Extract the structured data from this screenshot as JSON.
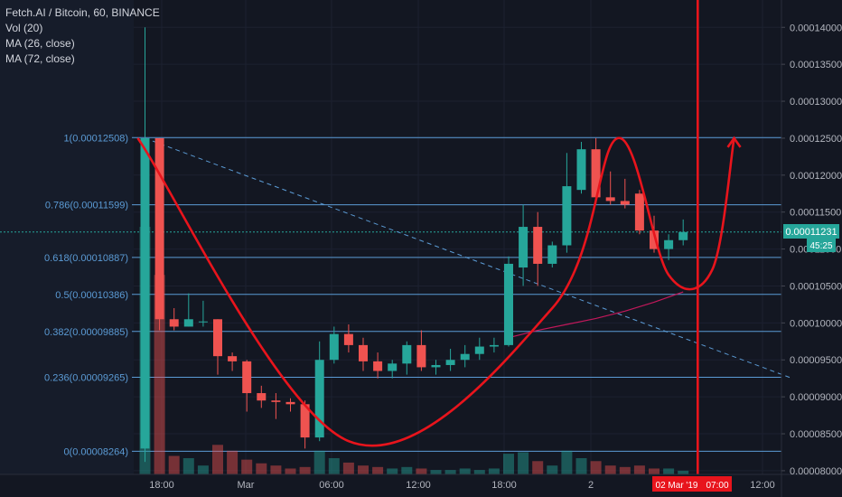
{
  "header": {
    "symbol_line": "Fetch.AI / Bitcoin, 60, BINANCE",
    "indicators": [
      "Vol (20)",
      "MA (26, close)",
      "MA (72, close)"
    ]
  },
  "price_axis": {
    "ticks": [
      "0.00014000",
      "0.00013500",
      "0.00013000",
      "0.00012500",
      "0.00012000",
      "0.00011500",
      "0.00011000",
      "0.00010500",
      "0.00010000",
      "0.00009500",
      "0.00009000",
      "0.00008500",
      "0.00008000"
    ],
    "current_price": "0.00011231",
    "countdown": "45:25"
  },
  "time_axis": {
    "labels": [
      "18:00",
      "Mar",
      "06:00",
      "12:00",
      "18:00",
      "2",
      "12:00"
    ],
    "highlight_date": "02 Mar '19",
    "highlight_time": "07:00"
  },
  "colors": {
    "background": "#131722",
    "up": "#26a69a",
    "down": "#ef5350",
    "fib": "#5b9bd5",
    "drawing": "#e8141c",
    "axis_text": "#b2b5be"
  },
  "chart_data": {
    "type": "candlestick",
    "ylim": [
      7.95e-05,
      0.0001437
    ],
    "fib_levels": [
      {
        "label": "1(0.00012508)",
        "value": 0.00012508
      },
      {
        "label": "0.786(0.00011599)",
        "value": 0.00011599
      },
      {
        "label": "0.618(0.00010887)",
        "value": 0.00010887
      },
      {
        "label": "0.5(0.00010386)",
        "value": 0.00010386
      },
      {
        "label": "0.382(0.00009885)",
        "value": 9.885e-05
      },
      {
        "label": "0.236(0.00009265)",
        "value": 9.265e-05
      },
      {
        "label": "0(0.00008264)",
        "value": 8.264e-05
      }
    ],
    "candles": [
      {
        "o": 8.3e-05,
        "h": 0.00014,
        "l": 8.12e-05,
        "c": 0.000125,
        "v": 3.35e-05
      },
      {
        "o": 0.000125,
        "h": 0.000125,
        "l": 9.9e-05,
        "c": 0.0001005,
        "v": 2.7e-05
      },
      {
        "o": 0.0001005,
        "h": 0.000102,
        "l": 9.9e-05,
        "c": 9.95e-05,
        "v": 2.5e-06
      },
      {
        "o": 9.95e-05,
        "h": 0.000104,
        "l": 9.95e-05,
        "c": 0.0001005,
        "v": 2.2e-06
      },
      {
        "o": 0.0001002,
        "h": 0.000103,
        "l": 9.95e-05,
        "c": 0.0001002,
        "v": 1.2e-06
      },
      {
        "o": 0.0001005,
        "h": 0.0001005,
        "l": 9.3e-05,
        "c": 9.55e-05,
        "v": 4e-06
      },
      {
        "o": 9.55e-05,
        "h": 9.6e-05,
        "l": 9.35e-05,
        "c": 9.48e-05,
        "v": 3.2e-06
      },
      {
        "o": 9.48e-05,
        "h": 9.5e-05,
        "l": 8.8e-05,
        "c": 9.05e-05,
        "v": 2e-06
      },
      {
        "o": 9.05e-05,
        "h": 9.15e-05,
        "l": 8.85e-05,
        "c": 8.95e-05,
        "v": 1.5e-06
      },
      {
        "o": 8.95e-05,
        "h": 9.05e-05,
        "l": 8.7e-05,
        "c": 8.93e-05,
        "v": 1.2e-06
      },
      {
        "o": 8.93e-05,
        "h": 8.98e-05,
        "l": 8.8e-05,
        "c": 8.9e-05,
        "v": 8e-07
      },
      {
        "o": 8.9e-05,
        "h": 8.95e-05,
        "l": 8.3e-05,
        "c": 8.45e-05,
        "v": 1e-06
      },
      {
        "o": 8.45e-05,
        "h": 9.75e-05,
        "l": 8.4e-05,
        "c": 9.5e-05,
        "v": 3.2e-06
      },
      {
        "o": 9.5e-05,
        "h": 9.95e-05,
        "l": 9.45e-05,
        "c": 9.85e-05,
        "v": 2.2e-06
      },
      {
        "o": 9.85e-05,
        "h": 9.98e-05,
        "l": 9.6e-05,
        "c": 9.7e-05,
        "v": 1.6e-06
      },
      {
        "o": 9.7e-05,
        "h": 9.8e-05,
        "l": 9.35e-05,
        "c": 9.48e-05,
        "v": 1.2e-06
      },
      {
        "o": 9.48e-05,
        "h": 9.6e-05,
        "l": 9.25e-05,
        "c": 9.35e-05,
        "v": 1e-06
      },
      {
        "o": 9.35e-05,
        "h": 9.5e-05,
        "l": 9.25e-05,
        "c": 9.45e-05,
        "v": 8e-07
      },
      {
        "o": 9.45e-05,
        "h": 9.75e-05,
        "l": 9.3e-05,
        "c": 9.7e-05,
        "v": 1e-06
      },
      {
        "o": 9.7e-05,
        "h": 9.9e-05,
        "l": 9.35e-05,
        "c": 9.4e-05,
        "v": 8e-07
      },
      {
        "o": 9.4e-05,
        "h": 9.5e-05,
        "l": 9.3e-05,
        "c": 9.43e-05,
        "v": 6e-07
      },
      {
        "o": 9.43e-05,
        "h": 9.65e-05,
        "l": 9.35e-05,
        "c": 9.5e-05,
        "v": 6e-07
      },
      {
        "o": 9.5e-05,
        "h": 9.7e-05,
        "l": 9.4e-05,
        "c": 9.58e-05,
        "v": 8e-07
      },
      {
        "o": 9.58e-05,
        "h": 9.8e-05,
        "l": 9.5e-05,
        "c": 9.68e-05,
        "v": 6e-07
      },
      {
        "o": 9.68e-05,
        "h": 9.8e-05,
        "l": 9.6e-05,
        "c": 9.7e-05,
        "v": 8e-07
      },
      {
        "o": 9.7e-05,
        "h": 0.000109,
        "l": 9.68e-05,
        "c": 0.000108,
        "v": 2.8e-06
      },
      {
        "o": 0.0001075,
        "h": 0.000116,
        "l": 0.000105,
        "c": 0.000113,
        "v": 3e-06
      },
      {
        "o": 0.000113,
        "h": 0.000115,
        "l": 0.000105,
        "c": 0.000108,
        "v": 1.8e-06
      },
      {
        "o": 0.000108,
        "h": 0.000111,
        "l": 0.0001075,
        "c": 0.0001105,
        "v": 1.2e-06
      },
      {
        "o": 0.0001105,
        "h": 0.000123,
        "l": 0.0001095,
        "c": 0.0001185,
        "v": 3.2e-06
      },
      {
        "o": 0.000118,
        "h": 0.0001245,
        "l": 0.0001175,
        "c": 0.0001235,
        "v": 2.2e-06
      },
      {
        "o": 0.0001235,
        "h": 0.000125,
        "l": 0.000116,
        "c": 0.000117,
        "v": 1.8e-06
      },
      {
        "o": 0.000117,
        "h": 0.0001205,
        "l": 0.000116,
        "c": 0.0001165,
        "v": 1.2e-06
      },
      {
        "o": 0.0001165,
        "h": 0.0001195,
        "l": 0.0001155,
        "c": 0.000116,
        "v": 1e-06
      },
      {
        "o": 0.0001175,
        "h": 0.000118,
        "l": 0.000112,
        "c": 0.0001125,
        "v": 1.2e-06
      },
      {
        "o": 0.0001125,
        "h": 0.0001145,
        "l": 0.0001095,
        "c": 0.00011,
        "v": 8e-07
      },
      {
        "o": 0.00011,
        "h": 0.000112,
        "l": 0.0001085,
        "c": 0.0001112,
        "v": 8e-07
      },
      {
        "o": 0.0001112,
        "h": 0.000114,
        "l": 0.0001105,
        "c": 0.0001123,
        "v": 5e-07
      }
    ],
    "ma_line": [
      [
        25,
        9.8e-05
      ],
      [
        27,
        9.9e-05
      ],
      [
        29,
        9.98e-05
      ],
      [
        31,
        0.0001006
      ],
      [
        33,
        0.0001016
      ],
      [
        35,
        0.0001028
      ],
      [
        37,
        0.0001042
      ]
    ],
    "trendline": {
      "from": [
        0,
        0.000125
      ],
      "to": [
        44.5,
        9.25e-05
      ]
    },
    "cup_path_points": [
      [
        -0.5,
        0.000125
      ],
      [
        14,
        8.4e-05
      ],
      [
        28,
        0.000102
      ],
      [
        32.5,
        0.000125
      ],
      [
        36,
        0.0001065
      ],
      [
        39,
        0.0001072
      ],
      [
        40.5,
        0.000125
      ]
    ],
    "vertical_marker_at": 38.0
  }
}
